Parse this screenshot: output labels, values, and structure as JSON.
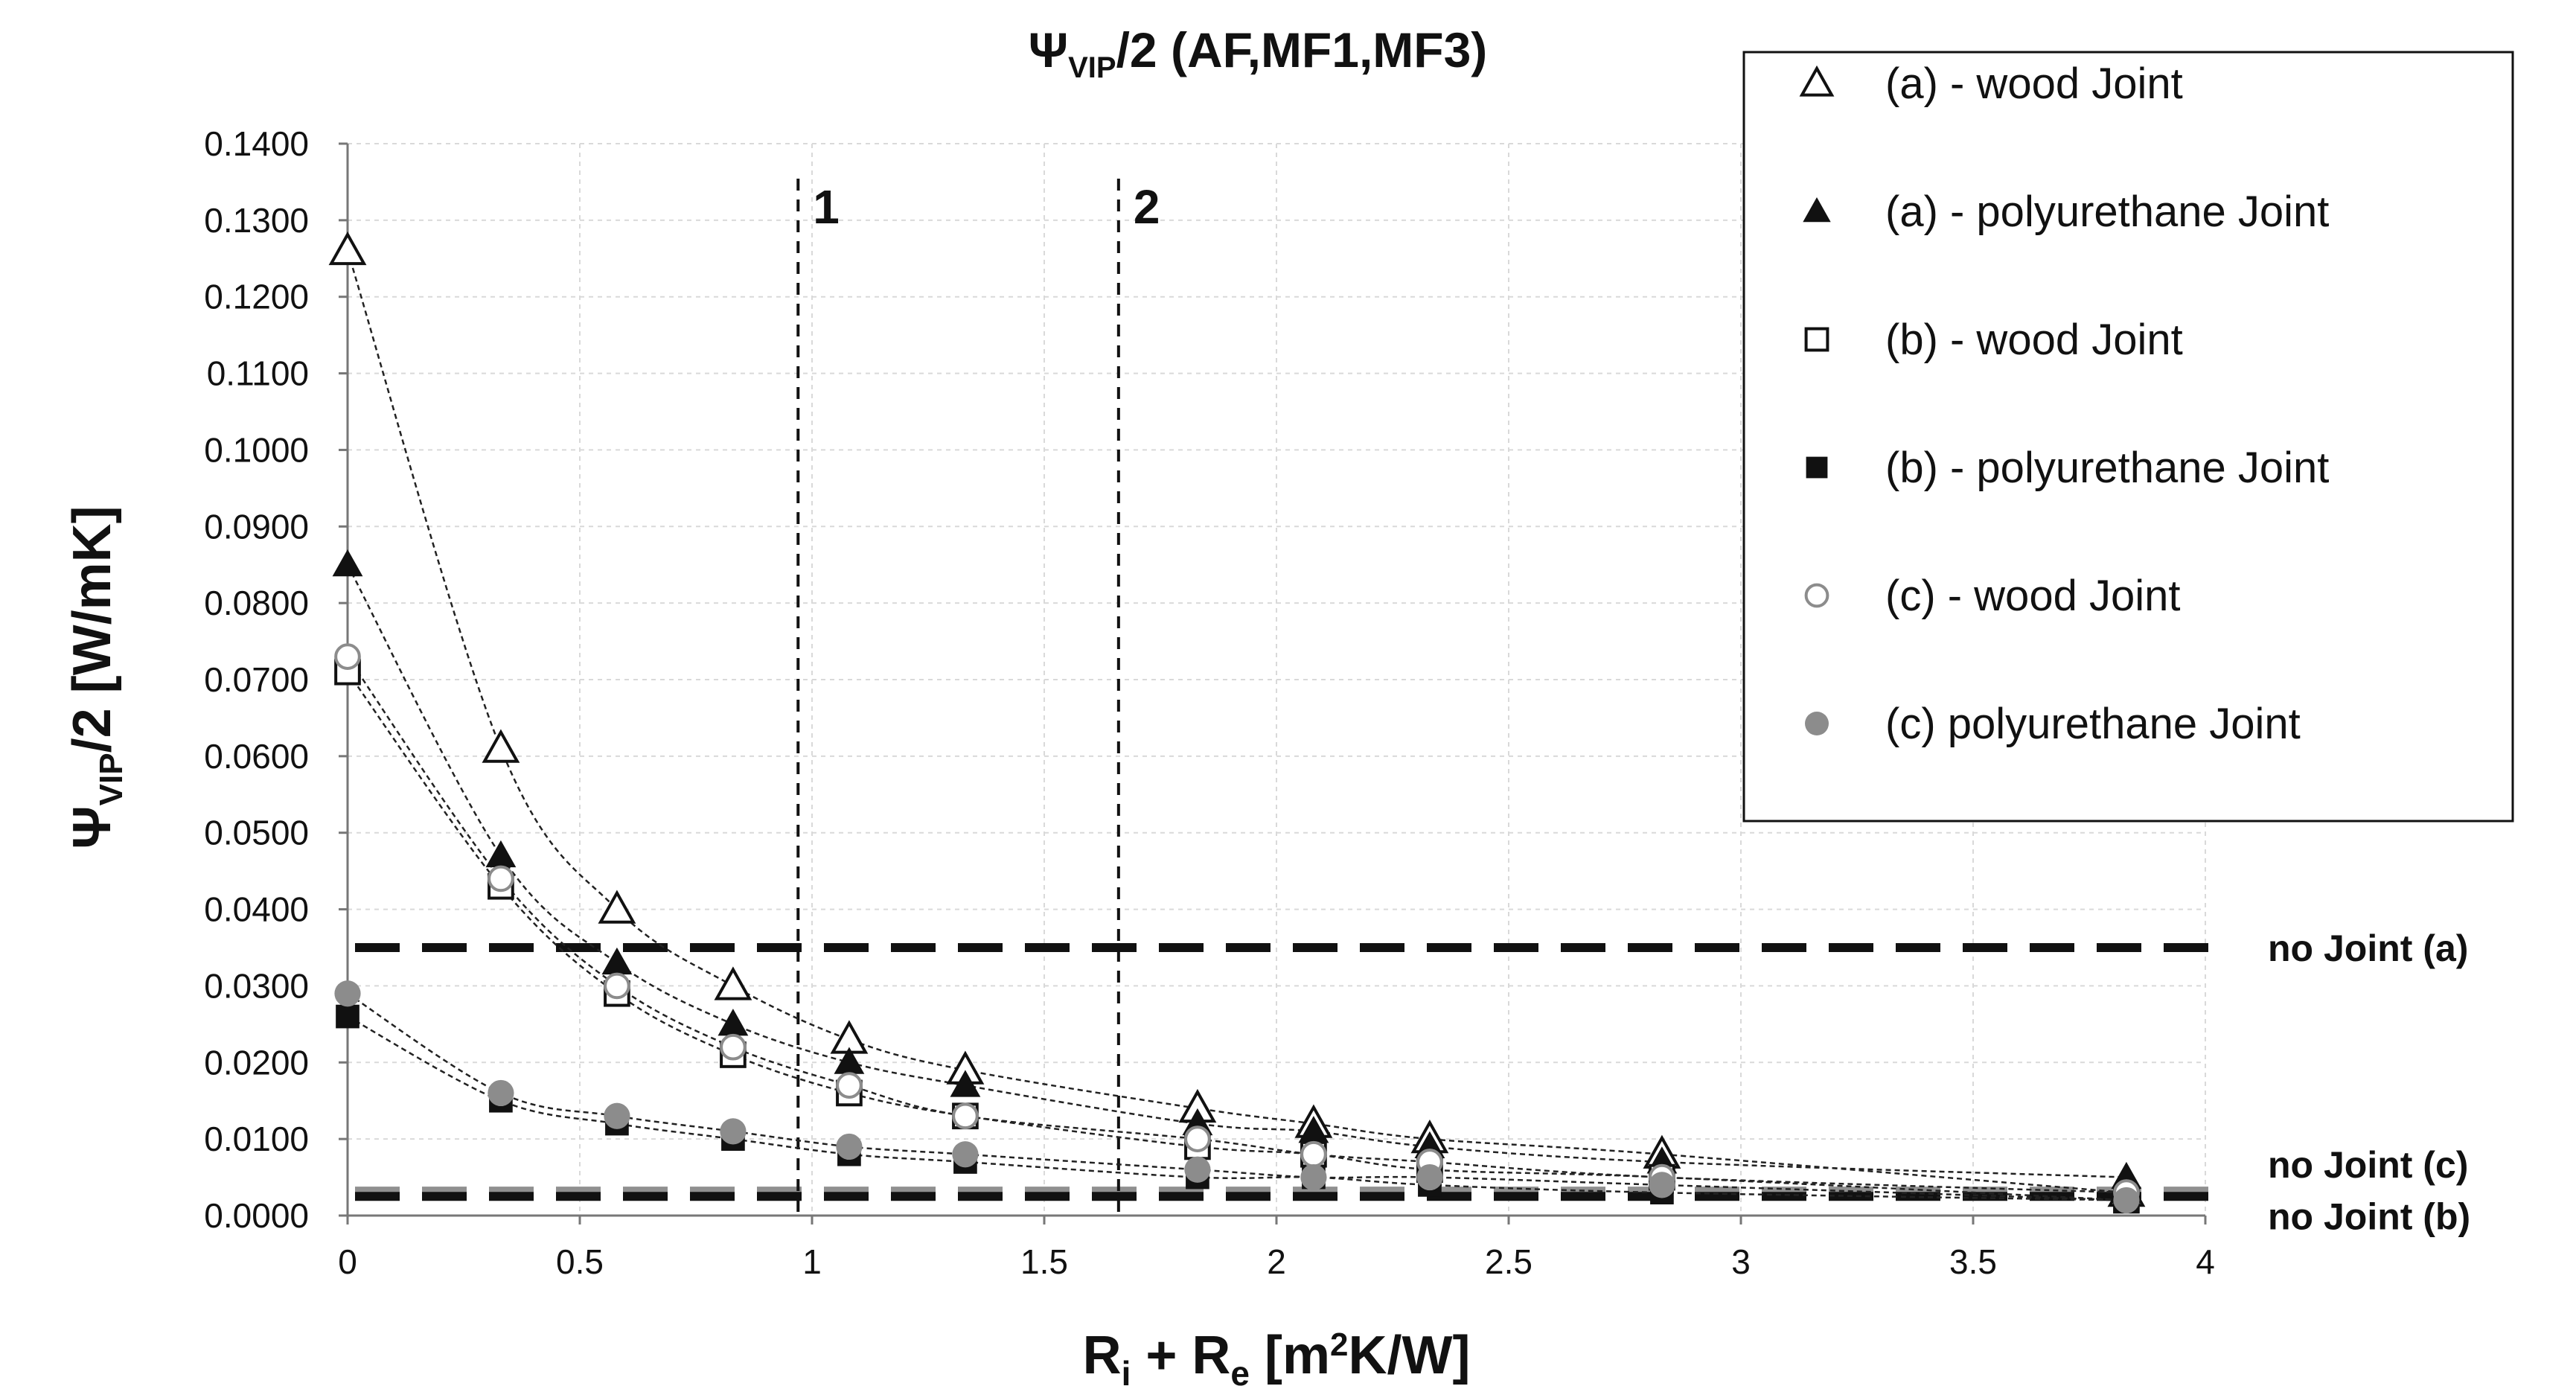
{
  "chart_data": {
    "type": "scatter",
    "title_main": "Ψ",
    "title_sub": "VIP",
    "title_rest": "/2 (AF,MF1,MF3)",
    "ylabel_main": "Ψ",
    "ylabel_sub": "VIP",
    "ylabel_rest": "/2 [W/mK]",
    "xlabel_a": "R",
    "xlabel_a_sub": "i",
    "xlabel_b": " + R",
    "xlabel_b_sub": "e",
    "xlabel_c": " [m",
    "xlabel_c_sup": "2",
    "xlabel_d": "K/W]",
    "xlim": [
      0,
      4
    ],
    "ylim": [
      0,
      0.14
    ],
    "x_ticks": [
      0,
      0.5,
      1,
      1.5,
      2,
      2.5,
      3,
      3.5,
      4
    ],
    "x_tick_labels": [
      "0",
      "0.5",
      "1",
      "1.5",
      "2",
      "2.5",
      "3",
      "3.5",
      "4"
    ],
    "y_ticks": [
      0,
      0.01,
      0.02,
      0.03,
      0.04,
      0.05,
      0.06,
      0.07,
      0.08,
      0.09,
      0.1,
      0.11,
      0.12,
      0.13,
      0.14
    ],
    "y_tick_labels": [
      "0.0000",
      "0.0100",
      "0.0200",
      "0.0300",
      "0.0400",
      "0.0500",
      "0.0600",
      "0.0700",
      "0.0800",
      "0.0900",
      "0.1000",
      "0.1100",
      "0.1200",
      "0.1300",
      "0.1400"
    ],
    "grid": true,
    "legend_position": "top-right",
    "series": [
      {
        "name": "(a) - wood Joint",
        "marker": "triangle-open",
        "x": [
          0,
          0.33,
          0.58,
          0.83,
          1.08,
          1.33,
          1.83,
          2.08,
          2.33,
          2.83,
          3.83
        ],
        "y": [
          0.126,
          0.061,
          0.04,
          0.03,
          0.023,
          0.019,
          0.014,
          0.012,
          0.01,
          0.008,
          0.003
        ]
      },
      {
        "name": "(a) - polyurethane Joint",
        "marker": "triangle-filled",
        "x": [
          0,
          0.33,
          0.58,
          0.83,
          1.08,
          1.33,
          1.83,
          2.08,
          2.33,
          2.83,
          3.83
        ],
        "y": [
          0.085,
          0.047,
          0.033,
          0.025,
          0.02,
          0.017,
          0.012,
          0.011,
          0.009,
          0.007,
          0.005
        ]
      },
      {
        "name": "(b) - wood Joint",
        "marker": "square-open",
        "x": [
          0,
          0.33,
          0.58,
          0.83,
          1.08,
          1.33,
          1.83,
          2.08,
          2.33,
          2.83,
          3.83
        ],
        "y": [
          0.071,
          0.043,
          0.029,
          0.021,
          0.016,
          0.013,
          0.009,
          0.008,
          0.006,
          0.005,
          0.002
        ]
      },
      {
        "name": "(b) - polyurethane Joint",
        "marker": "square-filled",
        "x": [
          0,
          0.33,
          0.58,
          0.83,
          1.08,
          1.33,
          1.83,
          2.08,
          2.33,
          2.83,
          3.83
        ],
        "y": [
          0.026,
          0.015,
          0.012,
          0.01,
          0.008,
          0.007,
          0.005,
          0.005,
          0.004,
          0.003,
          0.002
        ]
      },
      {
        "name": "(c) - wood Joint",
        "marker": "circle-open",
        "x": [
          0,
          0.33,
          0.58,
          0.83,
          1.08,
          1.33,
          1.83,
          2.08,
          2.33,
          2.83,
          3.83
        ],
        "y": [
          0.073,
          0.044,
          0.03,
          0.022,
          0.017,
          0.013,
          0.01,
          0.008,
          0.007,
          0.005,
          0.003
        ]
      },
      {
        "name": "(c) polyurethane Joint",
        "marker": "circle-filled",
        "x": [
          0,
          0.33,
          0.58,
          0.83,
          1.08,
          1.33,
          1.83,
          2.08,
          2.33,
          2.83,
          3.83
        ],
        "y": [
          0.029,
          0.016,
          0.013,
          0.011,
          0.009,
          0.008,
          0.006,
          0.005,
          0.005,
          0.004,
          0.002
        ]
      }
    ],
    "reference_lines": [
      {
        "label": "no Joint (a)",
        "y": 0.035,
        "color": "#111111"
      },
      {
        "label": "no Joint (c)",
        "y": 0.0032,
        "color": "#909090"
      },
      {
        "label": "no Joint (b)",
        "y": 0.0025,
        "color": "#111111"
      }
    ],
    "vertical_markers": [
      {
        "label": "1",
        "x": 0.97
      },
      {
        "label": "2",
        "x": 1.66
      }
    ],
    "colors": {
      "black": "#111111",
      "gray": "#8c8c8c",
      "grid": "#d9d9d9"
    }
  }
}
